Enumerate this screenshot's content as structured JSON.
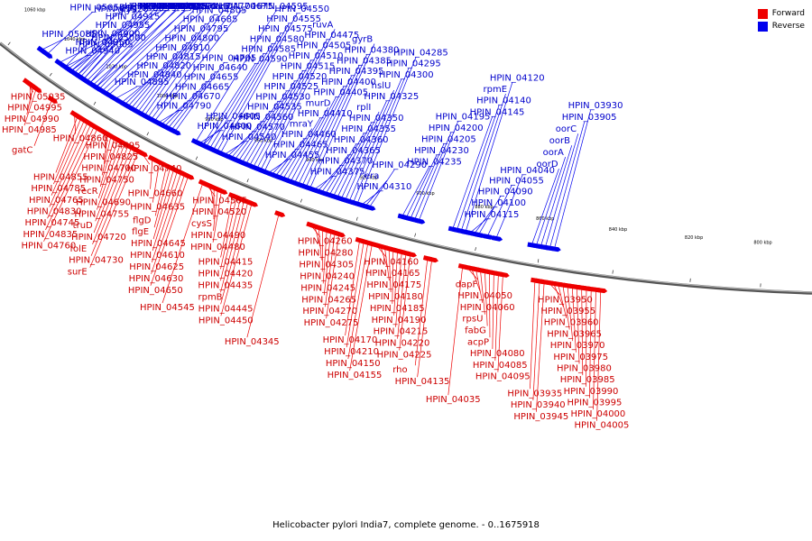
{
  "caption": "Helicobacter pylori India7, complete genome. - 0..1675918",
  "legend": {
    "forward_label": "Forward",
    "reverse_label": "Reverse",
    "forward_color": "#ee0000",
    "reverse_color": "#0000ee"
  },
  "ticks": [
    {
      "label": "1060 kbp",
      "pos": 0.01
    },
    {
      "label": "1040 kbp",
      "pos": 0.08
    },
    {
      "label": "1020 kbp",
      "pos": 0.15
    },
    {
      "label": "1000 kbp",
      "pos": 0.23
    },
    {
      "label": "980 kbp",
      "pos": 0.3
    },
    {
      "label": "960 kbp",
      "pos": 0.37
    },
    {
      "label": "940 kbp",
      "pos": 0.44
    },
    {
      "label": "920 kbp",
      "pos": 0.51
    },
    {
      "label": "900 kbp",
      "pos": 0.58
    },
    {
      "label": "880 kbp",
      "pos": 0.65
    },
    {
      "label": "860 kbp",
      "pos": 0.72
    },
    {
      "label": "840 kbp",
      "pos": 0.8
    },
    {
      "label": "820 kbp",
      "pos": 0.88
    },
    {
      "label": "800 kbp",
      "pos": 0.95
    }
  ],
  "reverse_genes": [
    {
      "label": "HPIN_05085",
      "pos": 0.05
    },
    {
      "label": "HPIN_05005",
      "pos": 0.1
    },
    {
      "label": "HPIN_05000",
      "pos": 0.11
    },
    {
      "label": "HPIN_05055",
      "pos": 0.06
    },
    {
      "label": "HPIN_05020",
      "pos": 0.09
    },
    {
      "label": "glyS",
      "pos": 0.12
    },
    {
      "label": "HPIN_04980",
      "pos": 0.13
    },
    {
      "label": "HPIN_04945",
      "pos": 0.14
    },
    {
      "label": "HPIN_04935",
      "pos": 0.145
    },
    {
      "label": "HPIN_04920",
      "pos": 0.15
    },
    {
      "label": "gpsA",
      "pos": 0.155
    },
    {
      "label": "glyQ",
      "pos": 0.16
    },
    {
      "label": "HPIN_04895",
      "pos": 0.17
    },
    {
      "label": "HPIN_04840",
      "pos": 0.18
    },
    {
      "label": "HPIN_04820",
      "pos": 0.185
    },
    {
      "label": "HPIN_04815",
      "pos": 0.19
    },
    {
      "label": "HPIN_04810",
      "pos": 0.195
    },
    {
      "label": "HPIN_04800",
      "pos": 0.2
    },
    {
      "label": "HPIN_04795",
      "pos": 0.205
    },
    {
      "label": "HPIN_04685",
      "pos": 0.21
    },
    {
      "label": "HPIN_04805",
      "pos": 0.215
    },
    {
      "label": "HPIN_04770",
      "pos": 0.22
    },
    {
      "label": "carB",
      "pos": 0.225
    },
    {
      "label": "HPIN_04675",
      "pos": 0.23
    },
    {
      "label": "HPIN_04790",
      "pos": 0.235
    },
    {
      "label": "HPIN_04670",
      "pos": 0.24
    },
    {
      "label": "HPIN_04665",
      "pos": 0.245
    },
    {
      "label": "HPIN_04655",
      "pos": 0.25
    },
    {
      "label": "HPIN_04640",
      "pos": 0.255
    },
    {
      "label": "HPIN_04705",
      "pos": 0.26
    },
    {
      "label": "HPIN_04590",
      "pos": 0.3
    },
    {
      "label": "HPIN_04585",
      "pos": 0.305
    },
    {
      "label": "HPIN_04580",
      "pos": 0.31
    },
    {
      "label": "HPIN_04575",
      "pos": 0.315
    },
    {
      "label": "HPIN_04555",
      "pos": 0.32
    },
    {
      "label": "HPIN_04550",
      "pos": 0.325
    },
    {
      "label": "HPIN_04540",
      "pos": 0.33
    },
    {
      "label": "HPIN_04570",
      "pos": 0.335
    },
    {
      "label": "HPIN_04560",
      "pos": 0.34
    },
    {
      "label": "HPIN_04535",
      "pos": 0.345
    },
    {
      "label": "HPIN_04530",
      "pos": 0.35
    },
    {
      "label": "HPIN_04525",
      "pos": 0.355
    },
    {
      "label": "HPIN_04520",
      "pos": 0.36
    },
    {
      "label": "HPIN_04515",
      "pos": 0.365
    },
    {
      "label": "HPIN_04510",
      "pos": 0.37
    },
    {
      "label": "HPIN_04505",
      "pos": 0.375
    },
    {
      "label": "HPIN_04475",
      "pos": 0.38
    },
    {
      "label": "ruvA",
      "pos": 0.385
    },
    {
      "label": "HPIN_04455",
      "pos": 0.39
    },
    {
      "label": "HPIN_04465",
      "pos": 0.395
    },
    {
      "label": "HPIN_04460",
      "pos": 0.4
    },
    {
      "label": "mraY",
      "pos": 0.405
    },
    {
      "label": "HPIN_04410",
      "pos": 0.41
    },
    {
      "label": "murD",
      "pos": 0.415
    },
    {
      "label": "HPIN_04405",
      "pos": 0.42
    },
    {
      "label": "HPIN_04400",
      "pos": 0.425
    },
    {
      "label": "HPIN_04395",
      "pos": 0.43
    },
    {
      "label": "HPIN_04385",
      "pos": 0.435
    },
    {
      "label": "HPIN_04380",
      "pos": 0.44
    },
    {
      "label": "gyrB",
      "pos": 0.445
    },
    {
      "label": "HPIN_04375",
      "pos": 0.45
    },
    {
      "label": "HPIN_04370",
      "pos": 0.455
    },
    {
      "label": "HPIN_04365",
      "pos": 0.46
    },
    {
      "label": "HPIN_04360",
      "pos": 0.465
    },
    {
      "label": "HPIN_04355",
      "pos": 0.47
    },
    {
      "label": "HPIN_04350",
      "pos": 0.475
    },
    {
      "label": "rplI",
      "pos": 0.48
    },
    {
      "label": "HPIN_04325",
      "pos": 0.485
    },
    {
      "label": "hslU",
      "pos": 0.49
    },
    {
      "label": "HPIN_04300",
      "pos": 0.495
    },
    {
      "label": "HPIN_04295",
      "pos": 0.5
    },
    {
      "label": "HPIN_04285",
      "pos": 0.505
    },
    {
      "label": "HPIN_04310",
      "pos": 0.51
    },
    {
      "label": "era",
      "pos": 0.515
    },
    {
      "label": "HPIN_04290",
      "pos": 0.52
    },
    {
      "label": "HPIN_04235",
      "pos": 0.56
    },
    {
      "label": "HPIN_04230",
      "pos": 0.565
    },
    {
      "label": "HPIN_04205",
      "pos": 0.57
    },
    {
      "label": "HPIN_04200",
      "pos": 0.575
    },
    {
      "label": "HPIN_04195",
      "pos": 0.58
    },
    {
      "label": "HPIN_04145",
      "pos": 0.62
    },
    {
      "label": "HPIN_04140",
      "pos": 0.625
    },
    {
      "label": "rpmE",
      "pos": 0.63
    },
    {
      "label": "HPIN_04120",
      "pos": 0.635
    },
    {
      "label": "HPIN_04115",
      "pos": 0.64
    },
    {
      "label": "HPIN_04100",
      "pos": 0.645
    },
    {
      "label": "HPIN_04090",
      "pos": 0.65
    },
    {
      "label": "HPIN_04055",
      "pos": 0.66
    },
    {
      "label": "HPIN_04040",
      "pos": 0.67
    },
    {
      "label": "oorD",
      "pos": 0.71
    },
    {
      "label": "oorA",
      "pos": 0.715
    },
    {
      "label": "oorB",
      "pos": 0.72
    },
    {
      "label": "oorC",
      "pos": 0.725
    },
    {
      "label": "HPIN_03905",
      "pos": 0.73
    },
    {
      "label": "HPIN_03930",
      "pos": 0.735
    },
    {
      "label": "HPIN_04965",
      "pos": 0.08
    },
    {
      "label": "HPIN_04940",
      "pos": 0.09
    },
    {
      "label": "HPIN_04950",
      "pos": 0.095
    },
    {
      "label": "HPIN_04900",
      "pos": 0.1
    },
    {
      "label": "HPIN_04955",
      "pos": 0.105
    },
    {
      "label": "HPIN_04915",
      "pos": 0.11
    },
    {
      "label": "HPIN_04865",
      "pos": 0.115
    },
    {
      "label": "HPIN_04845",
      "pos": 0.12
    },
    {
      "label": "HPIN_04850",
      "pos": 0.125
    },
    {
      "label": "HPIN_04880",
      "pos": 0.13
    },
    {
      "label": "HPIN_04885",
      "pos": 0.135
    },
    {
      "label": "HPIN_04890",
      "pos": 0.14
    },
    {
      "label": "HPIN_04595",
      "pos": 0.29
    },
    {
      "label": "HPIN_04600",
      "pos": 0.295
    },
    {
      "label": "HPIN_04605",
      "pos": 0.3
    }
  ],
  "forward_genes": [
    {
      "label": "HPIN_05035",
      "pos": 0.06
    },
    {
      "label": "HPIN_04995",
      "pos": 0.065
    },
    {
      "label": "HPIN_04990",
      "pos": 0.07
    },
    {
      "label": "HPIN_04985",
      "pos": 0.075
    },
    {
      "label": "gatC",
      "pos": 0.1
    },
    {
      "label": "HPIN_04855",
      "pos": 0.14
    },
    {
      "label": "HPIN_04785",
      "pos": 0.145
    },
    {
      "label": "HPIN_04765",
      "pos": 0.15
    },
    {
      "label": "HPIN_04830",
      "pos": 0.155
    },
    {
      "label": "HPIN_04745",
      "pos": 0.16
    },
    {
      "label": "HPIN_04835",
      "pos": 0.165
    },
    {
      "label": "HPIN_04760",
      "pos": 0.17
    },
    {
      "label": "HPIN_04695",
      "pos": 0.175
    },
    {
      "label": "HPIN_04825",
      "pos": 0.18
    },
    {
      "label": "HPIN_04700",
      "pos": 0.185
    },
    {
      "label": "HPIN_04750",
      "pos": 0.19
    },
    {
      "label": "recR",
      "pos": 0.195
    },
    {
      "label": "HPIN_04690",
      "pos": 0.2
    },
    {
      "label": "HPIN_04755",
      "pos": 0.205
    },
    {
      "label": "truD",
      "pos": 0.21
    },
    {
      "label": "HPIN_04720",
      "pos": 0.215
    },
    {
      "label": "folE",
      "pos": 0.22
    },
    {
      "label": "HPIN_04730",
      "pos": 0.225
    },
    {
      "label": "surE",
      "pos": 0.23
    },
    {
      "label": "HPIN_04740",
      "pos": 0.235
    },
    {
      "label": "HPIN_04860",
      "pos": 0.135
    },
    {
      "label": "HPIN_04660",
      "pos": 0.25
    },
    {
      "label": "HPIN_04635",
      "pos": 0.26
    },
    {
      "label": "flgD",
      "pos": 0.27
    },
    {
      "label": "flgE",
      "pos": 0.275
    },
    {
      "label": "HPIN_04645",
      "pos": 0.28
    },
    {
      "label": "HPIN_04610",
      "pos": 0.285
    },
    {
      "label": "HPIN_04625",
      "pos": 0.29
    },
    {
      "label": "HPIN_04630",
      "pos": 0.295
    },
    {
      "label": "HPIN_04650",
      "pos": 0.3
    },
    {
      "label": "HPIN_04545",
      "pos": 0.32
    },
    {
      "label": "HPIN_04565",
      "pos": 0.325
    },
    {
      "label": "HPIN_04520",
      "pos": 0.33
    },
    {
      "label": "cysS",
      "pos": 0.335
    },
    {
      "label": "HPIN_04490",
      "pos": 0.34
    },
    {
      "label": "HPIN_04480",
      "pos": 0.345
    },
    {
      "label": "HPIN_04415",
      "pos": 0.36
    },
    {
      "label": "HPIN_04420",
      "pos": 0.365
    },
    {
      "label": "HPIN_04435",
      "pos": 0.37
    },
    {
      "label": "rpmB",
      "pos": 0.375
    },
    {
      "label": "HPIN_04445",
      "pos": 0.38
    },
    {
      "label": "HPIN_04450",
      "pos": 0.385
    },
    {
      "label": "HPIN_04345",
      "pos": 0.42
    },
    {
      "label": "HPIN_04260",
      "pos": 0.46
    },
    {
      "label": "HPIN_04280",
      "pos": 0.465
    },
    {
      "label": "HPIN_04305",
      "pos": 0.47
    },
    {
      "label": "HPIN_04240",
      "pos": 0.475
    },
    {
      "label": "HPIN_04245",
      "pos": 0.48
    },
    {
      "label": "HPIN_04265",
      "pos": 0.485
    },
    {
      "label": "HPIN_04270",
      "pos": 0.49
    },
    {
      "label": "HPIN_04275",
      "pos": 0.495
    },
    {
      "label": "HPIN_04170",
      "pos": 0.52
    },
    {
      "label": "HPIN_04210",
      "pos": 0.525
    },
    {
      "label": "HPIN_04150",
      "pos": 0.53
    },
    {
      "label": "HPIN_04155",
      "pos": 0.535
    },
    {
      "label": "HPIN_04160",
      "pos": 0.54
    },
    {
      "label": "HPIN_04165",
      "pos": 0.545
    },
    {
      "label": "HPIN_04175",
      "pos": 0.55
    },
    {
      "label": "HPIN_04180",
      "pos": 0.555
    },
    {
      "label": "HPIN_04185",
      "pos": 0.56
    },
    {
      "label": "HPIN_04190",
      "pos": 0.565
    },
    {
      "label": "HPIN_04215",
      "pos": 0.57
    },
    {
      "label": "HPIN_04220",
      "pos": 0.575
    },
    {
      "label": "HPIN_04225",
      "pos": 0.58
    },
    {
      "label": "rho",
      "pos": 0.6
    },
    {
      "label": "HPIN_04135",
      "pos": 0.605
    },
    {
      "label": "HPIN_04035",
      "pos": 0.64
    },
    {
      "label": "dapF",
      "pos": 0.645
    },
    {
      "label": "HPIN_04050",
      "pos": 0.65
    },
    {
      "label": "HPIN_04060",
      "pos": 0.655
    },
    {
      "label": "rpsU",
      "pos": 0.66
    },
    {
      "label": "fabG",
      "pos": 0.665
    },
    {
      "label": "acpP",
      "pos": 0.67
    },
    {
      "label": "HPIN_04080",
      "pos": 0.675
    },
    {
      "label": "HPIN_04085",
      "pos": 0.68
    },
    {
      "label": "HPIN_04095",
      "pos": 0.685
    },
    {
      "label": "HPIN_03935",
      "pos": 0.72
    },
    {
      "label": "HPIN_03940",
      "pos": 0.725
    },
    {
      "label": "HPIN_03945",
      "pos": 0.73
    },
    {
      "label": "HPIN_03950",
      "pos": 0.735
    },
    {
      "label": "HPIN_03955",
      "pos": 0.74
    },
    {
      "label": "HPIN_03960",
      "pos": 0.745
    },
    {
      "label": "HPIN_03965",
      "pos": 0.75
    },
    {
      "label": "HPIN_03970",
      "pos": 0.755
    },
    {
      "label": "HPIN_03975",
      "pos": 0.76
    },
    {
      "label": "HPIN_03980",
      "pos": 0.765
    },
    {
      "label": "HPIN_03985",
      "pos": 0.77
    },
    {
      "label": "HPIN_03990",
      "pos": 0.775
    },
    {
      "label": "HPIN_03995",
      "pos": 0.78
    },
    {
      "label": "HPIN_04000",
      "pos": 0.785
    },
    {
      "label": "HPIN_04005",
      "pos": 0.79
    }
  ]
}
